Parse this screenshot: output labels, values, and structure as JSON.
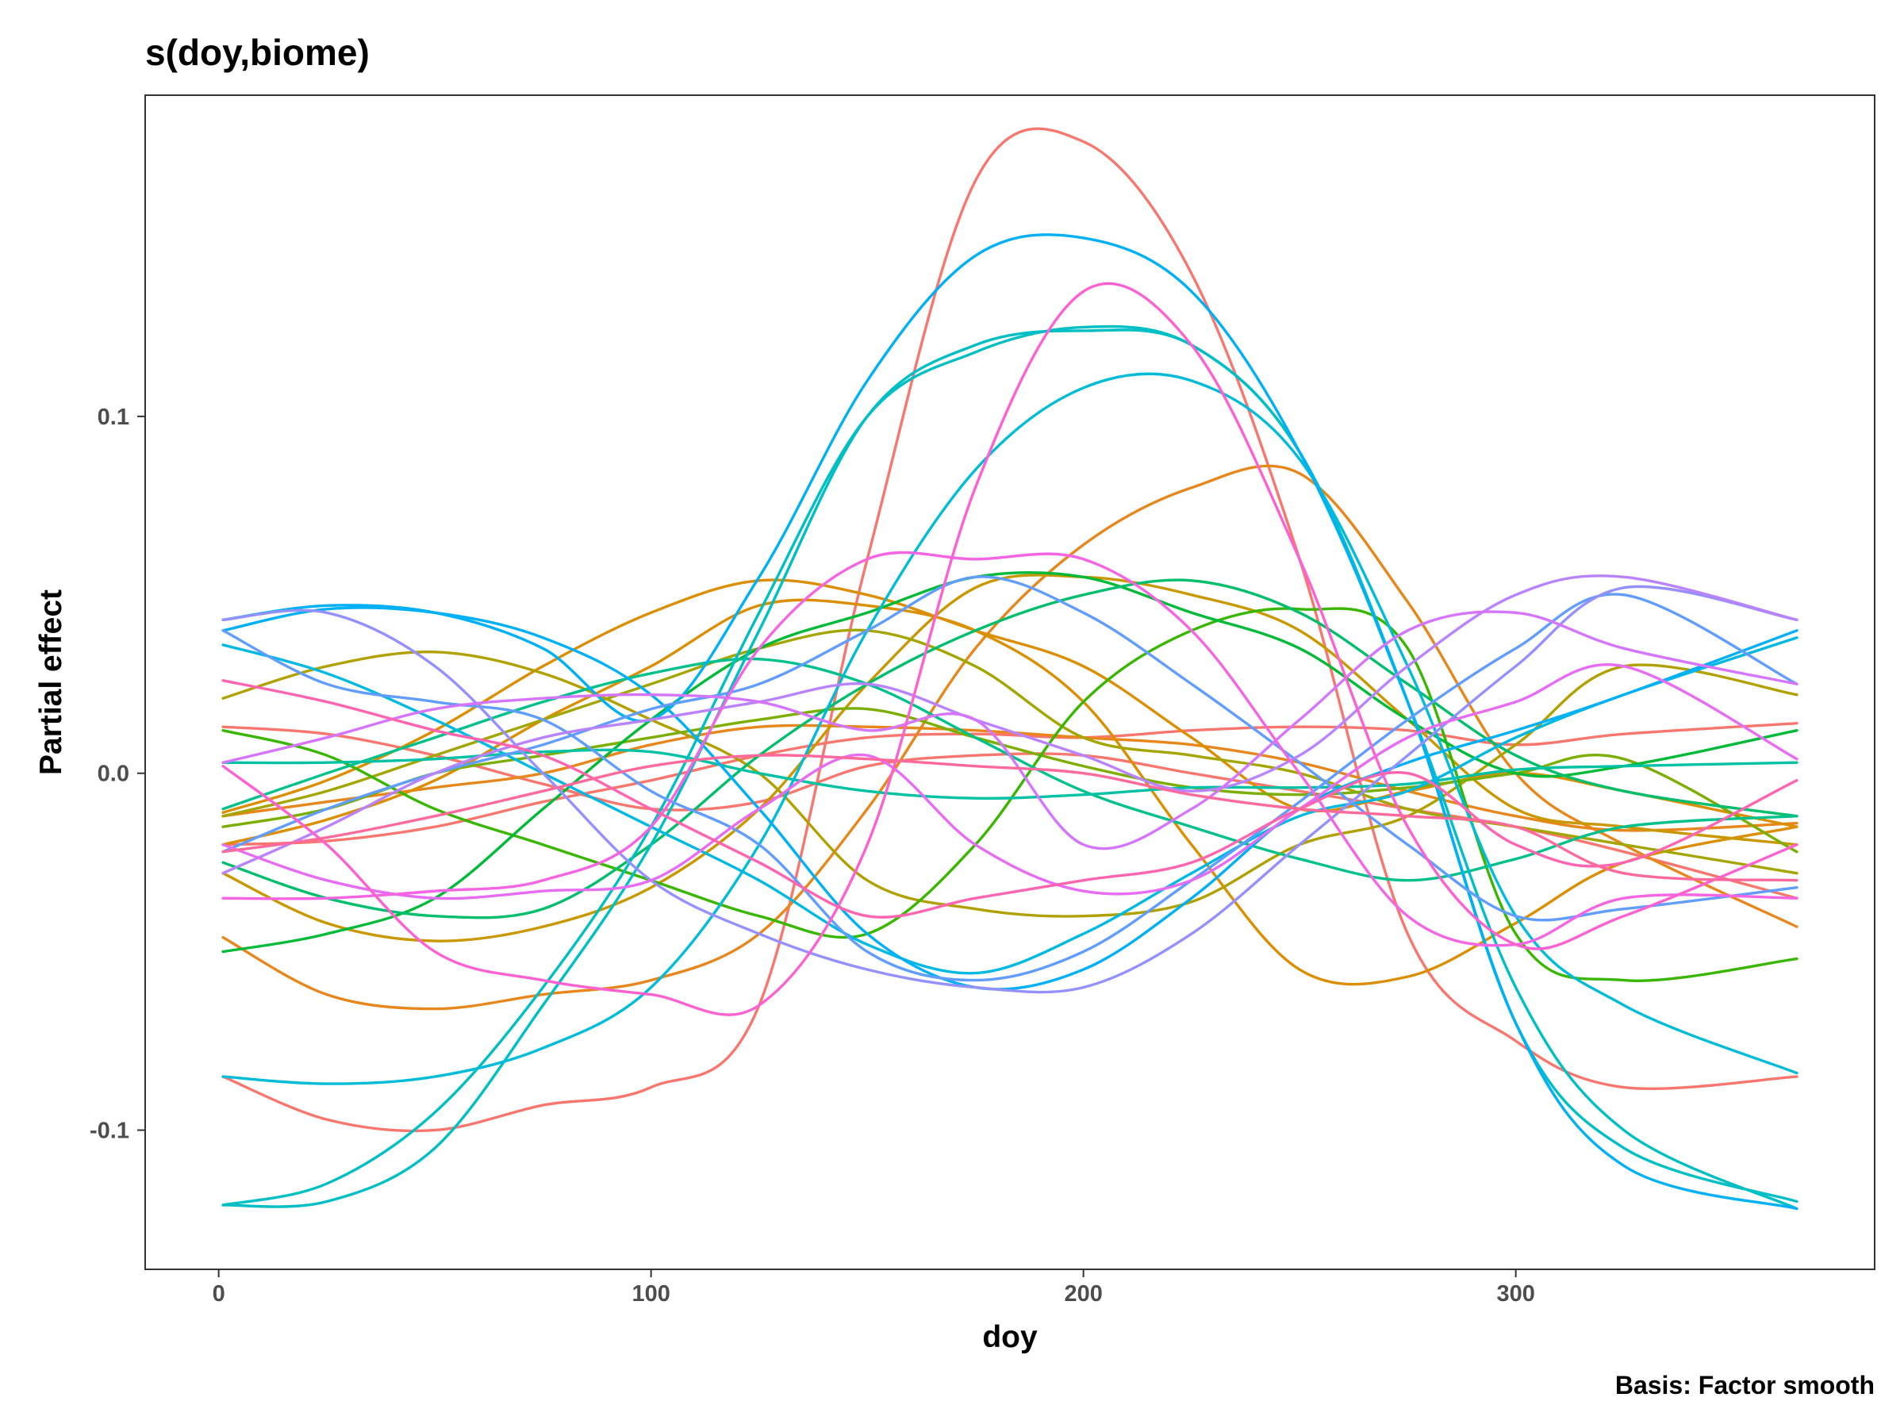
{
  "chart_data": {
    "type": "line",
    "title": "s(doy,biome)",
    "xlabel": "doy",
    "ylabel": "Partial effect",
    "caption": "Basis: Factor smooth",
    "xlim": [
      -17,
      383
    ],
    "ylim": [
      -0.139,
      0.19
    ],
    "x_ticks": [
      0,
      100,
      200,
      300
    ],
    "x_tick_labels": [
      "0",
      "100",
      "200",
      "300"
    ],
    "y_ticks": [
      -0.1,
      0.0,
      0.1
    ],
    "y_tick_labels": [
      "-0.1",
      "0.0",
      "0.1"
    ],
    "grid": false,
    "legend": "none",
    "x": [
      1,
      25,
      50,
      75,
      100,
      125,
      150,
      175,
      200,
      225,
      250,
      275,
      300,
      325,
      365
    ],
    "series": [
      {
        "color": "#F8766D",
        "values": [
          -0.085,
          -0.097,
          -0.1,
          -0.093,
          -0.088,
          -0.065,
          0.06,
          0.166,
          0.177,
          0.14,
          0.06,
          -0.045,
          -0.075,
          -0.088,
          -0.085
        ]
      },
      {
        "color": "#F8766D",
        "values": [
          0.013,
          0.011,
          0.005,
          -0.003,
          -0.01,
          -0.008,
          0.002,
          0.005,
          0.005,
          0.0,
          -0.005,
          -0.01,
          -0.015,
          -0.022,
          -0.035
        ]
      },
      {
        "color": "#F8766D",
        "values": [
          -0.02,
          -0.019,
          -0.015,
          -0.008,
          -0.002,
          0.005,
          0.01,
          0.011,
          0.01,
          0.012,
          0.013,
          0.012,
          0.008,
          0.011,
          0.014
        ]
      },
      {
        "color": "#E7861B",
        "values": [
          -0.046,
          -0.062,
          -0.066,
          -0.062,
          -0.058,
          -0.045,
          -0.01,
          0.035,
          0.064,
          0.08,
          0.084,
          0.048,
          0.0,
          -0.02,
          -0.043
        ]
      },
      {
        "color": "#E7861B",
        "values": [
          -0.012,
          -0.008,
          -0.004,
          0.0,
          0.008,
          0.013,
          0.013,
          0.012,
          0.01,
          0.008,
          0.003,
          -0.005,
          -0.012,
          -0.016,
          -0.014
        ]
      },
      {
        "color": "#DB8E00",
        "values": [
          -0.02,
          -0.013,
          -0.002,
          0.015,
          0.03,
          0.047,
          0.047,
          0.04,
          0.02,
          -0.02,
          -0.055,
          -0.057,
          -0.042,
          -0.025,
          -0.015
        ]
      },
      {
        "color": "#DB8E00",
        "values": [
          -0.011,
          -0.002,
          0.012,
          0.03,
          0.045,
          0.054,
          0.05,
          0.04,
          0.03,
          0.01,
          -0.01,
          -0.005,
          0.0,
          -0.005,
          -0.015
        ]
      },
      {
        "color": "#C99800",
        "values": [
          -0.028,
          -0.042,
          -0.047,
          -0.043,
          -0.032,
          -0.01,
          0.025,
          0.052,
          0.055,
          0.05,
          0.04,
          0.015,
          -0.01,
          -0.015,
          -0.02
        ]
      },
      {
        "color": "#B0A000",
        "values": [
          0.021,
          0.03,
          0.034,
          0.028,
          0.015,
          0.0,
          -0.03,
          -0.038,
          -0.04,
          -0.036,
          -0.02,
          -0.012,
          0.008,
          0.03,
          0.022
        ]
      },
      {
        "color": "#A3A500",
        "values": [
          -0.012,
          -0.005,
          0.005,
          0.015,
          0.025,
          0.035,
          0.04,
          0.03,
          0.01,
          0.005,
          0.0,
          -0.01,
          -0.015,
          -0.02,
          -0.028
        ]
      },
      {
        "color": "#7CAE00",
        "values": [
          -0.015,
          -0.01,
          0.0,
          0.005,
          0.01,
          0.015,
          0.018,
          0.01,
          0.002,
          -0.004,
          -0.006,
          -0.004,
          0.0,
          0.004,
          -0.022
        ]
      },
      {
        "color": "#39B600",
        "values": [
          0.012,
          0.005,
          -0.01,
          -0.02,
          -0.03,
          -0.04,
          -0.045,
          -0.02,
          0.02,
          0.04,
          0.046,
          0.035,
          -0.045,
          -0.058,
          -0.052
        ]
      },
      {
        "color": "#00BA38",
        "values": [
          -0.05,
          -0.045,
          -0.035,
          -0.01,
          0.015,
          0.035,
          0.045,
          0.055,
          0.055,
          0.045,
          0.035,
          0.015,
          0.0,
          0.002,
          0.012
        ]
      },
      {
        "color": "#00BE6C",
        "values": [
          -0.025,
          -0.035,
          -0.04,
          -0.038,
          -0.02,
          0.005,
          0.025,
          0.04,
          0.05,
          0.054,
          0.045,
          0.025,
          0.005,
          -0.005,
          -0.012
        ]
      },
      {
        "color": "#00C08B",
        "values": [
          -0.01,
          0.0,
          0.01,
          0.02,
          0.028,
          0.032,
          0.025,
          0.01,
          -0.005,
          -0.015,
          -0.024,
          -0.03,
          -0.024,
          -0.015,
          -0.012
        ]
      },
      {
        "color": "#00C1A3",
        "values": [
          0.003,
          0.003,
          0.004,
          0.006,
          0.006,
          0.0,
          -0.005,
          -0.007,
          -0.006,
          -0.004,
          -0.004,
          -0.003,
          0.001,
          0.002,
          0.003
        ]
      },
      {
        "color": "#00BFC4",
        "values": [
          -0.121,
          -0.115,
          -0.095,
          -0.06,
          -0.015,
          0.045,
          0.1,
          0.118,
          0.125,
          0.12,
          0.09,
          0.02,
          -0.07,
          -0.105,
          -0.12
        ]
      },
      {
        "color": "#00BFC4",
        "values": [
          -0.121,
          -0.12,
          -0.105,
          -0.065,
          -0.02,
          0.04,
          0.1,
          0.12,
          0.124,
          0.12,
          0.09,
          0.02,
          -0.06,
          -0.1,
          -0.122
        ]
      },
      {
        "color": "#00BCD8",
        "values": [
          -0.085,
          -0.087,
          -0.085,
          -0.077,
          -0.06,
          -0.02,
          0.04,
          0.085,
          0.108,
          0.11,
          0.088,
          0.03,
          -0.04,
          -0.065,
          -0.084
        ]
      },
      {
        "color": "#00B9E3",
        "values": [
          0.036,
          0.028,
          0.015,
          0.0,
          -0.015,
          -0.03,
          -0.048,
          -0.056,
          -0.045,
          -0.028,
          -0.012,
          -0.005,
          0.01,
          0.022,
          0.038
        ]
      },
      {
        "color": "#00B0F6",
        "values": [
          0.04,
          0.046,
          0.045,
          0.038,
          0.022,
          -0.01,
          -0.045,
          -0.06,
          -0.055,
          -0.035,
          -0.01,
          0.003,
          0.012,
          0.022,
          0.04
        ]
      },
      {
        "color": "#00B0F6",
        "values": [
          0.043,
          0.047,
          0.045,
          0.035,
          0.015,
          0.055,
          0.11,
          0.145,
          0.15,
          0.135,
          0.09,
          0.02,
          -0.07,
          -0.11,
          -0.122
        ]
      },
      {
        "color": "#619CFF",
        "values": [
          -0.022,
          -0.01,
          0.0,
          0.008,
          0.018,
          0.025,
          0.04,
          0.055,
          0.045,
          0.025,
          0.003,
          -0.02,
          -0.04,
          -0.038,
          -0.032
        ]
      },
      {
        "color": "#619CFF",
        "values": [
          0.04,
          0.025,
          0.02,
          0.015,
          -0.005,
          -0.02,
          -0.05,
          -0.058,
          -0.05,
          -0.03,
          -0.008,
          0.015,
          0.035,
          0.05,
          0.025
        ]
      },
      {
        "color": "#9590FF",
        "values": [
          0.043,
          0.045,
          0.03,
          0.0,
          -0.03,
          -0.045,
          -0.055,
          -0.06,
          -0.06,
          -0.045,
          -0.02,
          0.005,
          0.03,
          0.052,
          0.043
        ]
      },
      {
        "color": "#B983FF",
        "values": [
          -0.028,
          -0.015,
          0.0,
          0.01,
          0.015,
          0.02,
          0.025,
          0.015,
          0.005,
          -0.005,
          0.005,
          0.03,
          0.05,
          0.055,
          0.043
        ]
      },
      {
        "color": "#D575FE",
        "values": [
          0.003,
          0.01,
          0.018,
          0.021,
          0.022,
          0.02,
          0.012,
          0.015,
          -0.02,
          -0.01,
          0.015,
          0.04,
          0.045,
          0.035,
          0.025
        ]
      },
      {
        "color": "#E76BF3",
        "values": [
          -0.02,
          -0.03,
          -0.035,
          -0.033,
          -0.03,
          -0.01,
          0.005,
          -0.02,
          -0.033,
          -0.03,
          -0.01,
          0.01,
          0.02,
          0.03,
          0.004
        ]
      },
      {
        "color": "#F564E3",
        "values": [
          -0.035,
          -0.035,
          -0.033,
          -0.03,
          -0.015,
          0.035,
          0.06,
          0.06,
          0.06,
          0.04,
          0.0,
          -0.04,
          -0.048,
          -0.035,
          -0.035
        ]
      },
      {
        "color": "#FD61D1",
        "values": [
          0.002,
          -0.02,
          -0.05,
          -0.058,
          -0.062,
          -0.065,
          -0.02,
          0.08,
          0.135,
          0.12,
          0.06,
          -0.015,
          -0.048,
          -0.04,
          -0.02
        ]
      },
      {
        "color": "#FF64B0",
        "values": [
          0.026,
          0.02,
          0.012,
          0.005,
          -0.01,
          -0.025,
          -0.04,
          -0.035,
          -0.03,
          -0.025,
          -0.01,
          0.0,
          -0.02,
          -0.025,
          -0.002
        ]
      },
      {
        "color": "#FF699C",
        "values": [
          -0.022,
          -0.018,
          -0.012,
          -0.005,
          0.002,
          0.005,
          0.004,
          0.002,
          0.0,
          -0.006,
          -0.01,
          -0.012,
          -0.015,
          -0.028,
          -0.03
        ]
      }
    ]
  }
}
